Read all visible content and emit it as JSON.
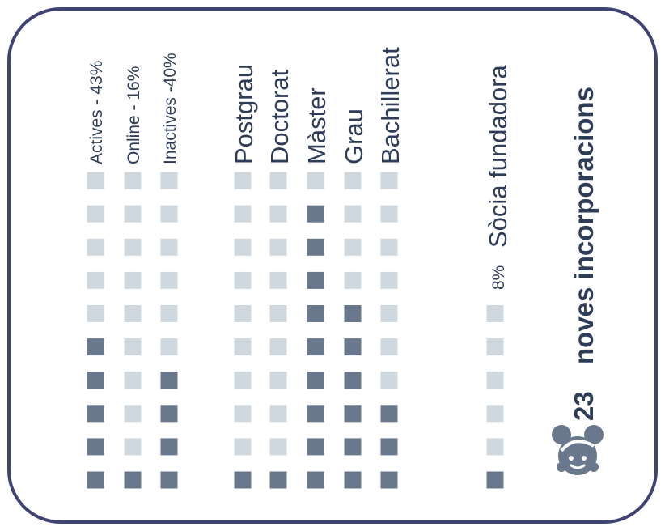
{
  "colors": {
    "filled": "#69788d",
    "empty": "#d0d8df",
    "text": "#2e3d57",
    "border": "#3f4372"
  },
  "chart_data": {
    "type": "waffle",
    "title": "noves incorporacions",
    "total": "23",
    "icon": "girl-face-icon",
    "cells_per_column": 10,
    "series": [
      {
        "name": "Actives - 43%",
        "filled": 5
      },
      {
        "name": "Online - 16%",
        "filled": 1
      },
      {
        "name": "Inactives -40%",
        "filled": 4
      },
      {
        "name": "Postgrau",
        "filled": 1
      },
      {
        "name": "Doctorat",
        "filled": 1
      },
      {
        "name": "Màster",
        "filled": 9
      },
      {
        "name": "Grau",
        "filled": 6
      },
      {
        "name": "Bachillerat",
        "filled": 3
      },
      {
        "name": "Sòcia fundadora",
        "prefix": "8%",
        "filled": 1,
        "cells": 6
      }
    ]
  }
}
